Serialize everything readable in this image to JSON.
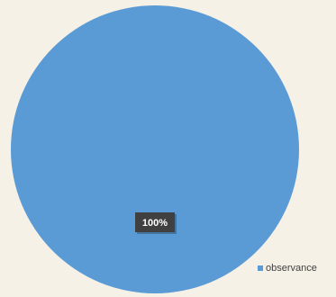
{
  "chart_data": {
    "type": "pie",
    "categories": [
      "observance"
    ],
    "values": [
      100
    ],
    "data_labels": [
      "100%"
    ],
    "legend": {
      "entries": [
        "observance"
      ],
      "position": "bottom-right"
    },
    "colors": {
      "slice": "#5b9bd5",
      "background": "#f6f1e6",
      "label_background": "#404040",
      "label_text": "#ffffff"
    }
  }
}
